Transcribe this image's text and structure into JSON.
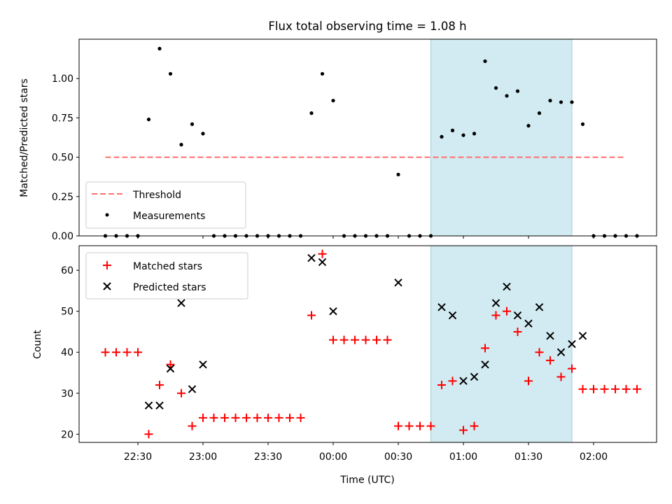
{
  "chart_data": [
    {
      "type": "scatter",
      "title": "Flux total observing time = 1.08 h",
      "xlabel": "",
      "ylabel": "Matched/Predicted stars",
      "ylim": [
        0,
        1.25
      ],
      "y_ticks": [
        "0.00",
        "0.25",
        "0.50",
        "0.75",
        "1.00"
      ],
      "y_tick_values": [
        0,
        0.25,
        0.5,
        0.75,
        1.0
      ],
      "x_ticks_shown": false,
      "legend_placement": "lower-left",
      "highlight_span": {
        "start": "00:45",
        "end": "01:50",
        "color": "#add8e6"
      },
      "threshold": {
        "name": "Threshold",
        "value": 0.5,
        "x_start": "22:15",
        "x_end": "02:15",
        "color": "#ff6f6f",
        "style": "dashed"
      },
      "series": [
        {
          "name": "Measurements",
          "marker": "dot",
          "color": "#000000",
          "points": [
            [
              "22:15",
              0.0
            ],
            [
              "22:20",
              0.0
            ],
            [
              "22:25",
              0.0
            ],
            [
              "22:30",
              0.0
            ],
            [
              "22:35",
              0.74
            ],
            [
              "22:40",
              1.19
            ],
            [
              "22:45",
              1.03
            ],
            [
              "22:50",
              0.58
            ],
            [
              "22:55",
              0.71
            ],
            [
              "23:00",
              0.65
            ],
            [
              "23:05",
              0.0
            ],
            [
              "23:10",
              0.0
            ],
            [
              "23:15",
              0.0
            ],
            [
              "23:20",
              0.0
            ],
            [
              "23:25",
              0.0
            ],
            [
              "23:30",
              0.0
            ],
            [
              "23:35",
              0.0
            ],
            [
              "23:40",
              0.0
            ],
            [
              "23:45",
              0.0
            ],
            [
              "23:50",
              0.78
            ],
            [
              "23:55",
              1.03
            ],
            [
              "00:00",
              0.86
            ],
            [
              "00:05",
              0.0
            ],
            [
              "00:10",
              0.0
            ],
            [
              "00:15",
              0.0
            ],
            [
              "00:20",
              0.0
            ],
            [
              "00:25",
              0.0
            ],
            [
              "00:30",
              0.39
            ],
            [
              "00:35",
              0.0
            ],
            [
              "00:40",
              0.0
            ],
            [
              "00:45",
              0.0
            ],
            [
              "00:50",
              0.63
            ],
            [
              "00:55",
              0.67
            ],
            [
              "01:00",
              0.64
            ],
            [
              "01:05",
              0.65
            ],
            [
              "01:10",
              1.11
            ],
            [
              "01:15",
              0.94
            ],
            [
              "01:20",
              0.89
            ],
            [
              "01:25",
              0.92
            ],
            [
              "01:30",
              0.7
            ],
            [
              "01:35",
              0.78
            ],
            [
              "01:40",
              0.86
            ],
            [
              "01:45",
              0.85
            ],
            [
              "01:50",
              0.85
            ],
            [
              "01:55",
              0.71
            ],
            [
              "02:00",
              0.0
            ],
            [
              "02:05",
              0.0
            ],
            [
              "02:10",
              0.0
            ],
            [
              "02:15",
              0.0
            ],
            [
              "02:20",
              0.0
            ]
          ]
        }
      ],
      "legend": [
        "Threshold",
        "Measurements"
      ]
    },
    {
      "type": "scatter",
      "title": "",
      "xlabel": "Time (UTC)",
      "ylabel": "Count",
      "ylim": [
        18,
        66
      ],
      "y_ticks": [
        "20",
        "30",
        "40",
        "50",
        "60"
      ],
      "y_tick_values": [
        20,
        30,
        40,
        50,
        60
      ],
      "x_ticks": [
        "22:30",
        "23:00",
        "23:30",
        "00:00",
        "00:30",
        "01:00",
        "01:30",
        "02:00"
      ],
      "legend_placement": "top-left",
      "highlight_span": {
        "start": "00:45",
        "end": "01:50",
        "color": "#add8e6"
      },
      "series": [
        {
          "name": "Matched stars",
          "marker": "plus",
          "color": "#ff0000",
          "points": [
            [
              "22:15",
              40
            ],
            [
              "22:20",
              40
            ],
            [
              "22:25",
              40
            ],
            [
              "22:30",
              40
            ],
            [
              "22:35",
              20
            ],
            [
              "22:40",
              32
            ],
            [
              "22:45",
              37
            ],
            [
              "22:50",
              30
            ],
            [
              "22:55",
              22
            ],
            [
              "23:00",
              24
            ],
            [
              "23:05",
              24
            ],
            [
              "23:10",
              24
            ],
            [
              "23:15",
              24
            ],
            [
              "23:20",
              24
            ],
            [
              "23:25",
              24
            ],
            [
              "23:30",
              24
            ],
            [
              "23:35",
              24
            ],
            [
              "23:40",
              24
            ],
            [
              "23:45",
              24
            ],
            [
              "23:50",
              49
            ],
            [
              "23:55",
              64
            ],
            [
              "00:00",
              43
            ],
            [
              "00:05",
              43
            ],
            [
              "00:10",
              43
            ],
            [
              "00:15",
              43
            ],
            [
              "00:20",
              43
            ],
            [
              "00:25",
              43
            ],
            [
              "00:30",
              22
            ],
            [
              "00:35",
              22
            ],
            [
              "00:40",
              22
            ],
            [
              "00:45",
              22
            ],
            [
              "00:50",
              32
            ],
            [
              "00:55",
              33
            ],
            [
              "01:00",
              21
            ],
            [
              "01:05",
              22
            ],
            [
              "01:10",
              41
            ],
            [
              "01:15",
              49
            ],
            [
              "01:20",
              50
            ],
            [
              "01:25",
              45
            ],
            [
              "01:30",
              33
            ],
            [
              "01:35",
              40
            ],
            [
              "01:40",
              38
            ],
            [
              "01:45",
              34
            ],
            [
              "01:50",
              36
            ],
            [
              "01:55",
              31
            ],
            [
              "02:00",
              31
            ],
            [
              "02:05",
              31
            ],
            [
              "02:10",
              31
            ],
            [
              "02:15",
              31
            ],
            [
              "02:20",
              31
            ]
          ]
        },
        {
          "name": "Predicted stars",
          "marker": "x",
          "color": "#000000",
          "points": [
            [
              "22:35",
              27
            ],
            [
              "22:40",
              27
            ],
            [
              "22:45",
              36
            ],
            [
              "22:50",
              52
            ],
            [
              "22:55",
              31
            ],
            [
              "23:00",
              37
            ],
            [
              "23:50",
              63
            ],
            [
              "23:55",
              62
            ],
            [
              "00:00",
              50
            ],
            [
              "00:30",
              57
            ],
            [
              "00:50",
              51
            ],
            [
              "00:55",
              49
            ],
            [
              "01:00",
              33
            ],
            [
              "01:05",
              34
            ],
            [
              "01:10",
              37
            ],
            [
              "01:15",
              52
            ],
            [
              "01:20",
              56
            ],
            [
              "01:25",
              49
            ],
            [
              "01:30",
              47
            ],
            [
              "01:35",
              51
            ],
            [
              "01:40",
              44
            ],
            [
              "01:45",
              40
            ],
            [
              "01:50",
              42
            ],
            [
              "01:55",
              44
            ]
          ]
        }
      ],
      "legend": [
        "Matched stars",
        "Predicted stars"
      ]
    }
  ]
}
